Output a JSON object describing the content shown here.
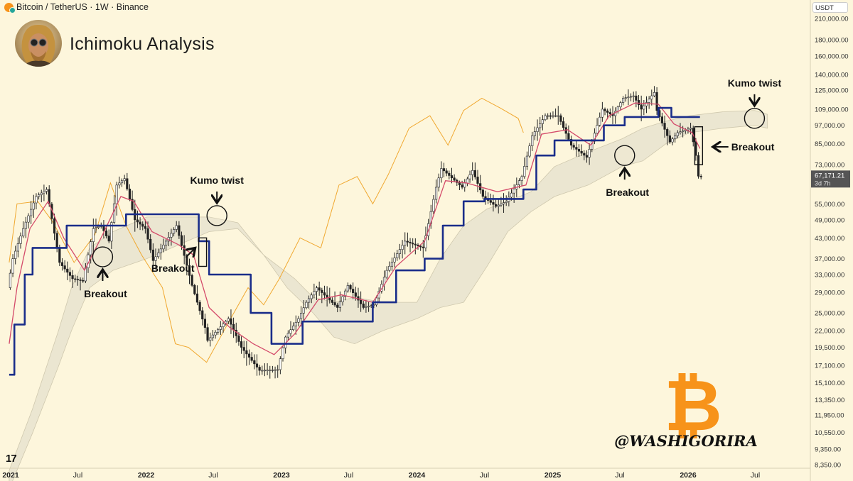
{
  "header": {
    "symbol_text": "Bitcoin / TetherUS · 1W · Binance",
    "currency_label": "USDT",
    "tv_logo": "17"
  },
  "title": "Ichimoku Analysis",
  "watermark": {
    "handle": "@WASHIGORIRA",
    "coin_symbol": "₿",
    "coin_color": "#f7931a"
  },
  "colors": {
    "background": "#fdf6dc",
    "tenkan": "#d44a6a",
    "kijun": "#1a2d8a",
    "chikou": "#f0a830",
    "cloud": "#e9e4cf",
    "candle_up": "#ffffff",
    "candle_down": "#222222"
  },
  "chart_data": {
    "type": "candlestick",
    "timeframe": "1W",
    "y_scale": "log",
    "y_ticks": [
      "210,000.00",
      "180,000.00",
      "160,000.00",
      "140,000.00",
      "125,000.00",
      "109,000.00",
      "97,000.00",
      "85,000.00",
      "73,000.00",
      "55,000.00",
      "49,000.00",
      "43,000.00",
      "37,000.00",
      "33,000.00",
      "29,000.00",
      "25,000.00",
      "22,000.00",
      "19,500.00",
      "17,100.00",
      "15,100.00",
      "13,350.00",
      "11,950.00",
      "10,550.00",
      "9,350.00",
      "8,350.00"
    ],
    "y_tick_values": [
      210000,
      180000,
      160000,
      140000,
      125000,
      109000,
      97000,
      85000,
      73000,
      55000,
      49000,
      43000,
      37000,
      33000,
      29000,
      25000,
      22000,
      19500,
      17100,
      15100,
      13350,
      11950,
      10550,
      9350,
      8350
    ],
    "x_ticks": [
      "2021",
      "Jul",
      "2022",
      "Jul",
      "2023",
      "Jul",
      "2024",
      "Jul",
      "2025",
      "Jul",
      "2026",
      "Jul"
    ],
    "x_tick_dates": [
      "2021-01-01",
      "2021-07-01",
      "2022-01-01",
      "2022-07-01",
      "2023-01-01",
      "2023-07-01",
      "2024-01-01",
      "2024-07-01",
      "2025-01-01",
      "2025-07-01",
      "2026-01-01",
      "2026-07-01"
    ],
    "bold_x_ticks": [
      "2021",
      "2022",
      "2023",
      "2024",
      "2025",
      "2026"
    ],
    "last_price": "67,171.21",
    "last_price_value": 67171.21,
    "countdown": "3d 7h",
    "price_path": [
      [
        "2020-12-28",
        30000
      ],
      [
        "2021-01-11",
        37000
      ],
      [
        "2021-02-08",
        46000
      ],
      [
        "2021-03-15",
        58000
      ],
      [
        "2021-04-12",
        61000
      ],
      [
        "2021-05-17",
        36000
      ],
      [
        "2021-06-21",
        32000
      ],
      [
        "2021-07-19",
        31500
      ],
      [
        "2021-08-16",
        46000
      ],
      [
        "2021-09-06",
        47000
      ],
      [
        "2021-09-27",
        42000
      ],
      [
        "2021-10-18",
        63000
      ],
      [
        "2021-11-08",
        66000
      ],
      [
        "2021-12-06",
        49000
      ],
      [
        "2022-01-03",
        46000
      ],
      [
        "2022-01-24",
        36500
      ],
      [
        "2022-03-28",
        47000
      ],
      [
        "2022-05-09",
        30500
      ],
      [
        "2022-06-13",
        22500
      ],
      [
        "2022-06-20",
        20500
      ],
      [
        "2022-08-15",
        24000
      ],
      [
        "2022-09-19",
        19500
      ],
      [
        "2022-11-07",
        16500
      ],
      [
        "2022-12-26",
        16600
      ],
      [
        "2023-01-16",
        21000
      ],
      [
        "2023-02-20",
        24000
      ],
      [
        "2023-03-13",
        27000
      ],
      [
        "2023-04-10",
        30000
      ],
      [
        "2023-06-05",
        26000
      ],
      [
        "2023-07-03",
        30500
      ],
      [
        "2023-08-14",
        26000
      ],
      [
        "2023-09-11",
        26500
      ],
      [
        "2023-10-16",
        34000
      ],
      [
        "2023-12-04",
        42000
      ],
      [
        "2024-01-22",
        40000
      ],
      [
        "2024-02-26",
        62000
      ],
      [
        "2024-03-11",
        71000
      ],
      [
        "2024-05-06",
        62000
      ],
      [
        "2024-06-03",
        70000
      ],
      [
        "2024-07-01",
        58000
      ],
      [
        "2024-08-05",
        54000
      ],
      [
        "2024-09-02",
        56000
      ],
      [
        "2024-10-14",
        67000
      ],
      [
        "2024-11-11",
        90000
      ],
      [
        "2024-12-16",
        104000
      ],
      [
        "2025-01-20",
        104000
      ],
      [
        "2025-02-24",
        84000
      ],
      [
        "2025-04-07",
        77000
      ],
      [
        "2025-05-19",
        109000
      ],
      [
        "2025-06-16",
        104000
      ],
      [
        "2025-07-14",
        118000
      ],
      [
        "2025-08-11",
        120000
      ],
      [
        "2025-09-01",
        109000
      ],
      [
        "2025-10-06",
        123000
      ],
      [
        "2025-10-13",
        108000
      ],
      [
        "2025-11-17",
        86000
      ],
      [
        "2025-12-08",
        92000
      ],
      [
        "2026-01-12",
        95000
      ],
      [
        "2026-01-26",
        78000
      ],
      [
        "2026-02-02",
        67171
      ]
    ],
    "kijun_path": [
      [
        "2020-12-28",
        16000
      ],
      [
        "2021-01-11",
        23000
      ],
      [
        "2021-02-08",
        33000
      ],
      [
        "2021-03-01",
        40000
      ],
      [
        "2021-06-01",
        47000
      ],
      [
        "2021-10-01",
        47000
      ],
      [
        "2021-11-08",
        51000
      ],
      [
        "2022-05-02",
        51000
      ],
      [
        "2022-05-23",
        42000
      ],
      [
        "2022-06-20",
        33000
      ],
      [
        "2022-09-01",
        33000
      ],
      [
        "2022-10-10",
        25000
      ],
      [
        "2022-12-05",
        20000
      ],
      [
        "2023-01-30",
        20000
      ],
      [
        "2023-02-27",
        23500
      ],
      [
        "2023-08-07",
        23500
      ],
      [
        "2023-09-04",
        27000
      ],
      [
        "2023-10-16",
        27000
      ],
      [
        "2023-11-06",
        34000
      ],
      [
        "2024-01-22",
        37000
      ],
      [
        "2024-03-11",
        47000
      ],
      [
        "2024-05-06",
        56000
      ],
      [
        "2024-07-01",
        57000
      ],
      [
        "2024-10-14",
        61000
      ],
      [
        "2024-11-18",
        78000
      ],
      [
        "2025-01-06",
        87000
      ],
      [
        "2025-03-10",
        87000
      ],
      [
        "2025-05-19",
        97000
      ],
      [
        "2025-07-14",
        103000
      ],
      [
        "2025-10-13",
        110000
      ],
      [
        "2025-11-17",
        103000
      ],
      [
        "2026-02-02",
        103000
      ]
    ],
    "tenkan_path": [
      [
        "2020-12-28",
        20000
      ],
      [
        "2021-01-18",
        30000
      ],
      [
        "2021-02-22",
        46000
      ],
      [
        "2021-04-12",
        56000
      ],
      [
        "2021-05-24",
        43000
      ],
      [
        "2021-07-19",
        34000
      ],
      [
        "2021-09-06",
        44000
      ],
      [
        "2021-10-25",
        58000
      ],
      [
        "2021-11-29",
        56000
      ],
      [
        "2022-01-17",
        45000
      ],
      [
        "2022-03-28",
        41000
      ],
      [
        "2022-05-09",
        38000
      ],
      [
        "2022-06-20",
        26000
      ],
      [
        "2022-08-15",
        22500
      ],
      [
        "2022-10-17",
        20000
      ],
      [
        "2022-12-12",
        18500
      ],
      [
        "2023-02-06",
        21500
      ],
      [
        "2023-04-10",
        27500
      ],
      [
        "2023-06-12",
        28500
      ],
      [
        "2023-09-04",
        27000
      ],
      [
        "2023-11-06",
        35000
      ],
      [
        "2024-01-22",
        42000
      ],
      [
        "2024-03-18",
        65000
      ],
      [
        "2024-05-13",
        64000
      ],
      [
        "2024-08-05",
        60000
      ],
      [
        "2024-10-21",
        63000
      ],
      [
        "2024-12-02",
        91000
      ],
      [
        "2025-02-10",
        94000
      ],
      [
        "2025-04-14",
        84000
      ],
      [
        "2025-06-02",
        104000
      ],
      [
        "2025-08-11",
        114000
      ],
      [
        "2025-10-13",
        113000
      ],
      [
        "2025-11-24",
        98000
      ],
      [
        "2026-01-12",
        92000
      ],
      [
        "2026-02-02",
        82000
      ]
    ],
    "chikou_path": [
      [
        "2020-12-28",
        36000
      ],
      [
        "2021-01-18",
        55000
      ],
      [
        "2021-03-15",
        56000
      ],
      [
        "2021-04-26",
        48000
      ],
      [
        "2021-06-21",
        36000
      ],
      [
        "2021-08-16",
        44000
      ],
      [
        "2021-09-27",
        64000
      ],
      [
        "2021-11-08",
        47000
      ],
      [
        "2021-12-20",
        38000
      ],
      [
        "2022-02-14",
        30000
      ],
      [
        "2022-03-21",
        20000
      ],
      [
        "2022-04-25",
        19500
      ],
      [
        "2022-06-13",
        17500
      ],
      [
        "2022-08-08",
        23000
      ],
      [
        "2022-10-03",
        30000
      ],
      [
        "2022-11-14",
        26500
      ],
      [
        "2022-12-26",
        32000
      ],
      [
        "2023-02-20",
        43000
      ],
      [
        "2023-04-17",
        40000
      ],
      [
        "2023-06-05",
        63000
      ],
      [
        "2023-07-24",
        67000
      ],
      [
        "2023-09-04",
        55000
      ],
      [
        "2023-10-16",
        68000
      ],
      [
        "2023-12-11",
        95000
      ],
      [
        "2024-02-05",
        104000
      ],
      [
        "2024-03-25",
        84000
      ],
      [
        "2024-05-06",
        108000
      ],
      [
        "2024-06-24",
        118000
      ],
      [
        "2024-08-12",
        110000
      ],
      [
        "2024-09-30",
        102000
      ],
      [
        "2024-10-14",
        92000
      ]
    ],
    "cloud": {
      "upper": [
        [
          "2020-12-28",
          8000
        ],
        [
          "2021-03-01",
          12500
        ],
        [
          "2021-05-10",
          22000
        ],
        [
          "2021-06-14",
          30000
        ],
        [
          "2021-08-02",
          40000
        ],
        [
          "2021-10-04",
          45000
        ],
        [
          "2022-01-03",
          50000
        ],
        [
          "2022-06-20",
          50000
        ],
        [
          "2022-09-05",
          48000
        ],
        [
          "2022-11-14",
          38000
        ],
        [
          "2023-02-06",
          32000
        ],
        [
          "2023-03-27",
          28000
        ],
        [
          "2023-05-22",
          27000
        ],
        [
          "2023-07-17",
          28000
        ],
        [
          "2023-10-02",
          27000
        ],
        [
          "2024-01-01",
          27000
        ],
        [
          "2024-03-04",
          37000
        ],
        [
          "2024-05-06",
          47000
        ],
        [
          "2024-07-08",
          53000
        ],
        [
          "2024-09-02",
          56000
        ],
        [
          "2024-11-04",
          60000
        ],
        [
          "2025-01-06",
          72000
        ],
        [
          "2025-04-07",
          80000
        ],
        [
          "2025-07-07",
          88000
        ],
        [
          "2025-09-01",
          95000
        ],
        [
          "2025-11-03",
          100000
        ],
        [
          "2026-01-05",
          104000
        ],
        [
          "2026-04-06",
          107000
        ],
        [
          "2026-06-29",
          108000
        ],
        [
          "2026-08-03",
          105000
        ]
      ],
      "lower": [
        [
          "2020-12-28",
          7000
        ],
        [
          "2021-03-01",
          10500
        ],
        [
          "2021-05-10",
          17000
        ],
        [
          "2021-06-14",
          22000
        ],
        [
          "2021-08-02",
          30000
        ],
        [
          "2021-10-04",
          34000
        ],
        [
          "2022-01-03",
          37000
        ],
        [
          "2022-06-20",
          45000
        ],
        [
          "2022-09-05",
          46000
        ],
        [
          "2022-11-14",
          38000
        ],
        [
          "2023-01-16",
          30000
        ],
        [
          "2023-03-27",
          25000
        ],
        [
          "2023-05-22",
          21000
        ],
        [
          "2023-07-17",
          20000
        ],
        [
          "2023-10-02",
          22000
        ],
        [
          "2024-01-01",
          24000
        ],
        [
          "2024-03-04",
          26000
        ],
        [
          "2024-05-06",
          27000
        ],
        [
          "2024-07-08",
          35000
        ],
        [
          "2024-09-02",
          45000
        ],
        [
          "2024-11-04",
          52000
        ],
        [
          "2025-01-06",
          58000
        ],
        [
          "2025-04-07",
          63000
        ],
        [
          "2025-07-07",
          72000
        ],
        [
          "2025-09-01",
          75000
        ],
        [
          "2025-11-03",
          85000
        ],
        [
          "2026-01-05",
          92000
        ],
        [
          "2026-04-06",
          95000
        ],
        [
          "2026-06-29",
          97000
        ],
        [
          "2026-08-03",
          95000
        ]
      ]
    },
    "annotations": [
      {
        "text": "Breakout",
        "date": "2021-09-06",
        "price": 37500,
        "arrow": "up",
        "label_pos": "below",
        "circle": true
      },
      {
        "text": "Breakout",
        "date": "2022-05-30",
        "price": 38500,
        "arrow": "up-right",
        "label_pos": "below-left",
        "box": {
          "date_from": "2022-05-23",
          "date_to": "2022-06-13",
          "price_low": 35000,
          "price_high": 43000
        }
      },
      {
        "text": "Kumo twist",
        "date": "2022-07-11",
        "price": 50500,
        "arrow": "down",
        "label_pos": "above",
        "circle": true
      },
      {
        "text": "Breakout",
        "date": "2025-07-14",
        "price": 78000,
        "arrow": "up",
        "label_pos": "below",
        "circle": true
      },
      {
        "text": "Breakout",
        "date": "2026-02-02",
        "price": 83000,
        "arrow": "left",
        "label_pos": "right",
        "box": {
          "date_from": "2026-01-19",
          "date_to": "2026-02-09",
          "price_low": 73000,
          "price_high": 96000
        }
      },
      {
        "text": "Kumo twist",
        "date": "2026-06-29",
        "price": 102000,
        "arrow": "down",
        "label_pos": "above",
        "circle": true
      }
    ]
  }
}
